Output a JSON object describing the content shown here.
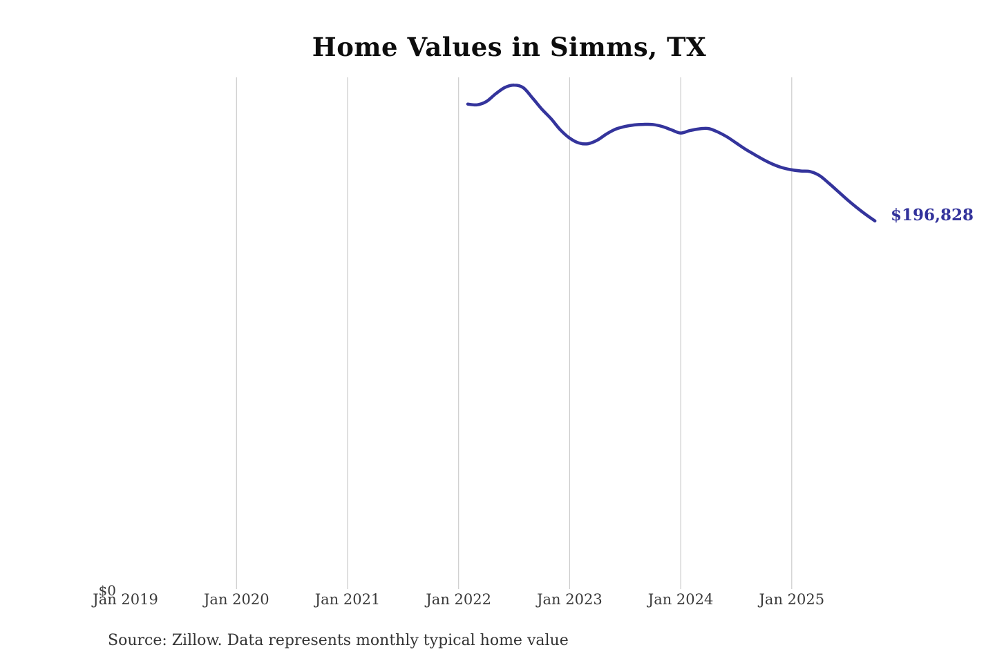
{
  "title": "Home Values in Simms, TX",
  "latest_value_label": "$196,828",
  "y_zero_label": "$0",
  "source_caption": "Source: Zillow. Data represents monthly typical home value",
  "colors": {
    "line": "#34349c",
    "latest_label": "#32329b",
    "gridline": "#cccccc",
    "axis_text": "#3a3a3a",
    "title_text": "#0d0d0d",
    "background": "#ffffff"
  },
  "chart_data": {
    "type": "line",
    "title": "Home Values in Simms, TX",
    "series_name": "Monthly typical home value",
    "xlabel": "",
    "ylabel": "",
    "ylim": [
      0,
      273000
    ],
    "grid": "vertical-only",
    "legend": "none",
    "x_tick_labels": [
      {
        "label": "Jan 2019",
        "has_gridline": false
      },
      {
        "label": "Jan 2020",
        "has_gridline": true
      },
      {
        "label": "Jan 2021",
        "has_gridline": true
      },
      {
        "label": "Jan 2022",
        "has_gridline": true
      },
      {
        "label": "Jan 2023",
        "has_gridline": true
      },
      {
        "label": "Jan 2024",
        "has_gridline": true
      },
      {
        "label": "Jan 2025",
        "has_gridline": true
      }
    ],
    "x": [
      "2022-01",
      "2022-02",
      "2022-03",
      "2022-04",
      "2022-05",
      "2022-06",
      "2022-07",
      "2022-08",
      "2022-09",
      "2022-10",
      "2022-11",
      "2022-12",
      "2023-01",
      "2023-02",
      "2023-03",
      "2023-04",
      "2023-05",
      "2023-06",
      "2023-07",
      "2023-08",
      "2023-09",
      "2023-10",
      "2023-11",
      "2023-12",
      "2024-01",
      "2024-02",
      "2024-03",
      "2024-04",
      "2024-05",
      "2024-06",
      "2024-07",
      "2024-08",
      "2024-09",
      "2024-10",
      "2024-11",
      "2024-12",
      "2025-01",
      "2025-02",
      "2025-03",
      "2025-04",
      "2025-05",
      "2025-06",
      "2025-07",
      "2025-08",
      "2025-09"
    ],
    "values": [
      259000,
      258600,
      260300,
      264400,
      267800,
      269100,
      267700,
      262200,
      256300,
      251200,
      245300,
      240900,
      238300,
      237900,
      239800,
      243100,
      245700,
      247100,
      247900,
      248200,
      248100,
      247100,
      245300,
      243600,
      244900,
      245800,
      246000,
      244200,
      241600,
      238300,
      235000,
      232100,
      229300,
      226900,
      225100,
      224000,
      223400,
      223100,
      221000,
      217000,
      212600,
      208200,
      204100,
      200300,
      196828
    ],
    "latest_value": 196828
  }
}
